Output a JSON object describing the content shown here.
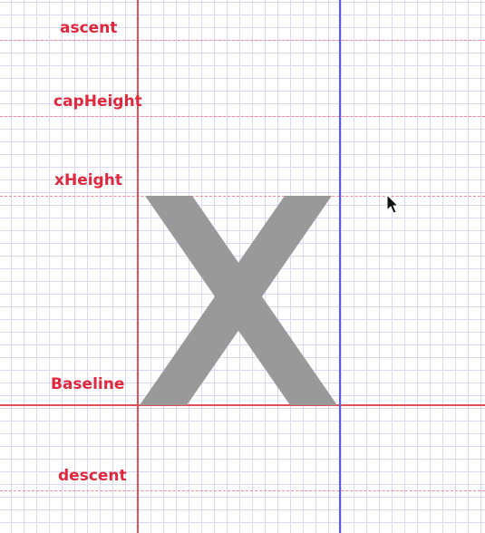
{
  "labels": {
    "ascent": "ascent",
    "capHeight": "capHeight",
    "xHeight": "xHeight",
    "baseline": "Baseline",
    "descent": "descent"
  },
  "colors": {
    "label": "#e0283c",
    "metric_line": "#f08a9a",
    "baseline_line": "#e0505a",
    "left_bound": "#e0505a",
    "advance_bound": "#5a5ae0",
    "glyph": "#999999",
    "grid": "#dcd8f3"
  },
  "glyph": {
    "character": "x",
    "icon": "glyph-x"
  },
  "cursor": {
    "icon": "mouse-pointer-icon"
  }
}
